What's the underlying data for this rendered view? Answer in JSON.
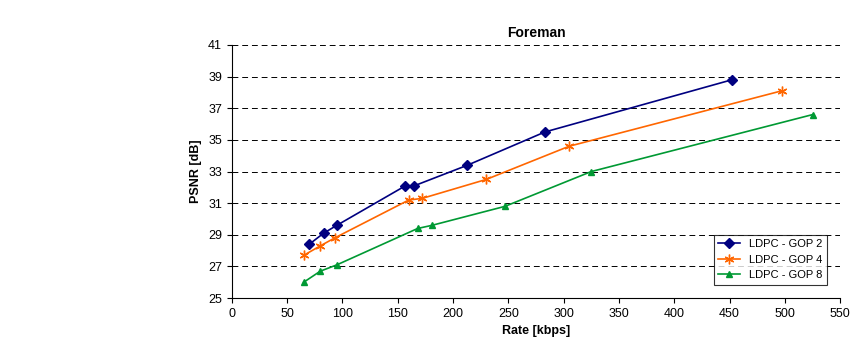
{
  "chart_data": {
    "type": "line",
    "title": "Foreman",
    "x_label": "Rate [kbps]",
    "y_label": "PSNR [dB]",
    "xlim": [
      0,
      550
    ],
    "xticks": [
      0,
      50,
      100,
      150,
      200,
      250,
      300,
      350,
      400,
      450,
      500,
      550
    ],
    "ylim": [
      25,
      41
    ],
    "yticks": [
      25,
      27,
      29,
      31,
      33,
      35,
      37,
      39,
      41
    ],
    "grid": true,
    "legend": "lower right",
    "series": [
      {
        "name": "LDPC - GOP 2",
        "color": "#000080",
        "marker": "diamond",
        "line_style": "solid",
        "x": [
          70,
          83,
          95,
          157,
          165,
          213,
          283,
          452
        ],
        "values": [
          28.4,
          29.1,
          29.6,
          32.1,
          32.1,
          33.4,
          35.5,
          38.8
        ]
      },
      {
        "name": "LDPC - GOP 4",
        "color": "#FF6600",
        "marker": "asterisk",
        "line_style": "solid",
        "x": [
          65,
          80,
          93,
          160,
          172,
          230,
          305,
          497
        ],
        "values": [
          27.7,
          28.3,
          28.8,
          31.2,
          31.3,
          32.5,
          34.6,
          38.1
        ]
      },
      {
        "name": "LDPC - GOP 8",
        "color": "#009933",
        "marker": "triangle",
        "line_style": "solid",
        "x": [
          65,
          80,
          95,
          168,
          181,
          247,
          325,
          525
        ],
        "values": [
          26.0,
          26.7,
          27.1,
          29.4,
          29.6,
          30.8,
          33.0,
          36.6
        ]
      }
    ]
  }
}
